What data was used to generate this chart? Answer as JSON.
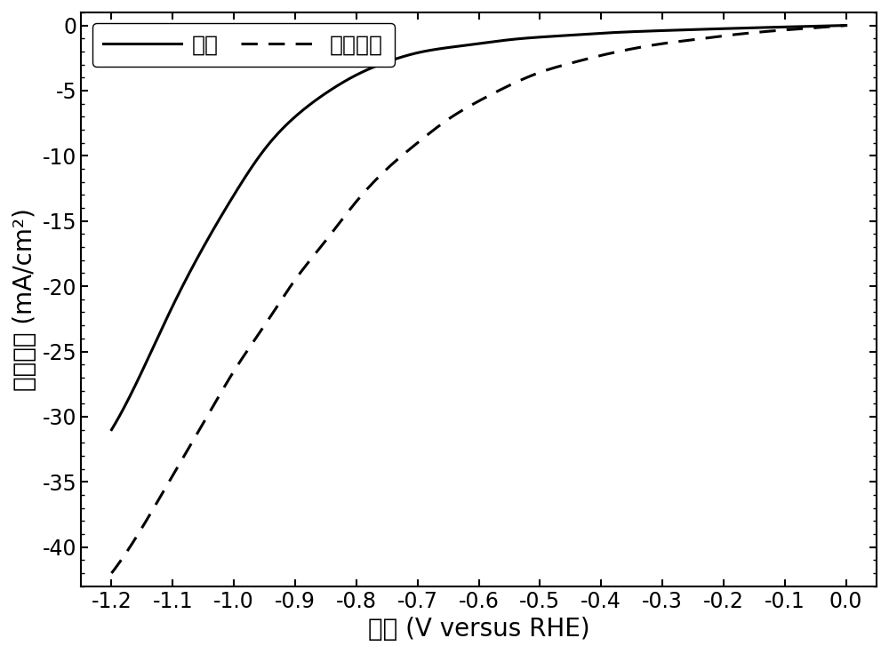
{
  "xlabel": "电势 (V versus RHE)",
  "ylabel": "电流密度 (mA/cm²)",
  "xlim": [
    -1.25,
    0.05
  ],
  "ylim": [
    -43,
    1
  ],
  "xticks": [
    -1.2,
    -1.1,
    -1.0,
    -0.9,
    -0.8,
    -0.7,
    -0.6,
    -0.5,
    -0.4,
    -0.3,
    -0.2,
    -0.1,
    0.0
  ],
  "yticks": [
    0,
    -5,
    -10,
    -15,
    -20,
    -25,
    -30,
    -35,
    -40
  ],
  "legend_solid": "氮气",
  "legend_dashed": "二氧化碑",
  "line_color": "#000000",
  "background_color": "#ffffff",
  "xlabel_fontsize": 20,
  "ylabel_fontsize": 20,
  "tick_fontsize": 17,
  "legend_fontsize": 18,
  "key_x_solid": [
    -1.2,
    -1.15,
    -1.1,
    -1.05,
    -1.0,
    -0.95,
    -0.9,
    -0.85,
    -0.8,
    -0.75,
    -0.7,
    -0.65,
    -0.6,
    -0.55,
    -0.5,
    -0.45,
    -0.4,
    -0.3,
    -0.2,
    -0.1,
    0.0
  ],
  "key_y_solid": [
    -31.0,
    -26.5,
    -21.5,
    -17.0,
    -13.0,
    -9.5,
    -7.0,
    -5.2,
    -3.8,
    -2.8,
    -2.1,
    -1.7,
    -1.4,
    -1.1,
    -0.9,
    -0.75,
    -0.6,
    -0.4,
    -0.25,
    -0.12,
    0.0
  ],
  "key_x_dashed": [
    -1.2,
    -1.15,
    -1.1,
    -1.05,
    -1.0,
    -0.95,
    -0.9,
    -0.85,
    -0.8,
    -0.75,
    -0.7,
    -0.65,
    -0.6,
    -0.55,
    -0.5,
    -0.45,
    -0.4,
    -0.35,
    -0.3,
    -0.25,
    -0.2,
    -0.15,
    -0.1,
    -0.05,
    0.0
  ],
  "key_y_dashed": [
    -42.0,
    -38.5,
    -34.5,
    -30.5,
    -26.5,
    -23.0,
    -19.5,
    -16.5,
    -13.5,
    -11.0,
    -9.0,
    -7.2,
    -5.8,
    -4.6,
    -3.6,
    -2.9,
    -2.3,
    -1.8,
    -1.4,
    -1.1,
    -0.8,
    -0.55,
    -0.35,
    -0.18,
    0.0
  ]
}
